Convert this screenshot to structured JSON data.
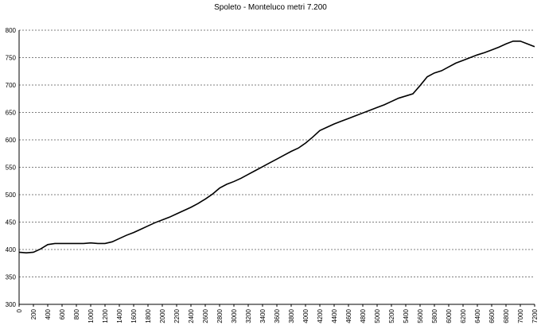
{
  "chart_data": {
    "type": "line",
    "title": "Spoleto - Monteluco metri 7.200",
    "xlabel": "",
    "ylabel": "",
    "xlim": [
      0,
      7200
    ],
    "ylim": [
      300,
      800
    ],
    "grid": true,
    "y_ticks": [
      "300",
      "350",
      "400",
      "450",
      "500",
      "550",
      "600",
      "650",
      "700",
      "750",
      "800"
    ],
    "x_ticks": [
      "0",
      "200",
      "400",
      "600",
      "800",
      "1000",
      "1200",
      "1400",
      "1600",
      "1800",
      "2000",
      "2200",
      "2400",
      "2600",
      "2800",
      "3000",
      "3200",
      "3400",
      "3600",
      "3800",
      "4000",
      "4200",
      "4400",
      "4600",
      "4800",
      "5000",
      "5200",
      "5400",
      "5600",
      "5800",
      "6000",
      "6200",
      "6400",
      "6600",
      "6800",
      "7000",
      "7200"
    ],
    "series": [
      {
        "x": [
          0,
          100,
          200,
          300,
          400,
          500,
          600,
          700,
          800,
          900,
          1000,
          1100,
          1200,
          1300,
          1400,
          1500,
          1600,
          1700,
          1800,
          1900,
          2000,
          2100,
          2200,
          2300,
          2400,
          2500,
          2600,
          2700,
          2800,
          2900,
          3000,
          3100,
          3200,
          3300,
          3400,
          3500,
          3600,
          3700,
          3800,
          3900,
          4000,
          4100,
          4200,
          4300,
          4400,
          4500,
          4600,
          4700,
          4800,
          4900,
          5000,
          5100,
          5200,
          5300,
          5400,
          5500,
          5600,
          5700,
          5800,
          5900,
          6000,
          6100,
          6200,
          6300,
          6400,
          6500,
          6600,
          6700,
          6800,
          6900,
          7000,
          7100,
          7200
        ],
        "values": [
          395,
          394,
          395,
          401,
          409,
          411,
          411,
          411,
          411,
          411,
          412,
          411,
          411,
          414,
          420,
          426,
          431,
          437,
          443,
          449,
          454,
          459,
          465,
          471,
          477,
          484,
          492,
          501,
          512,
          519,
          524,
          530,
          537,
          544,
          551,
          558,
          565,
          572,
          579,
          585,
          594,
          605,
          617,
          623,
          629,
          634,
          639,
          644,
          649,
          654,
          659,
          664,
          670,
          676,
          680,
          684,
          699,
          715,
          722,
          726,
          733,
          740,
          745,
          750,
          755,
          759,
          764,
          769,
          775,
          780,
          780,
          775,
          770
        ]
      }
    ]
  }
}
